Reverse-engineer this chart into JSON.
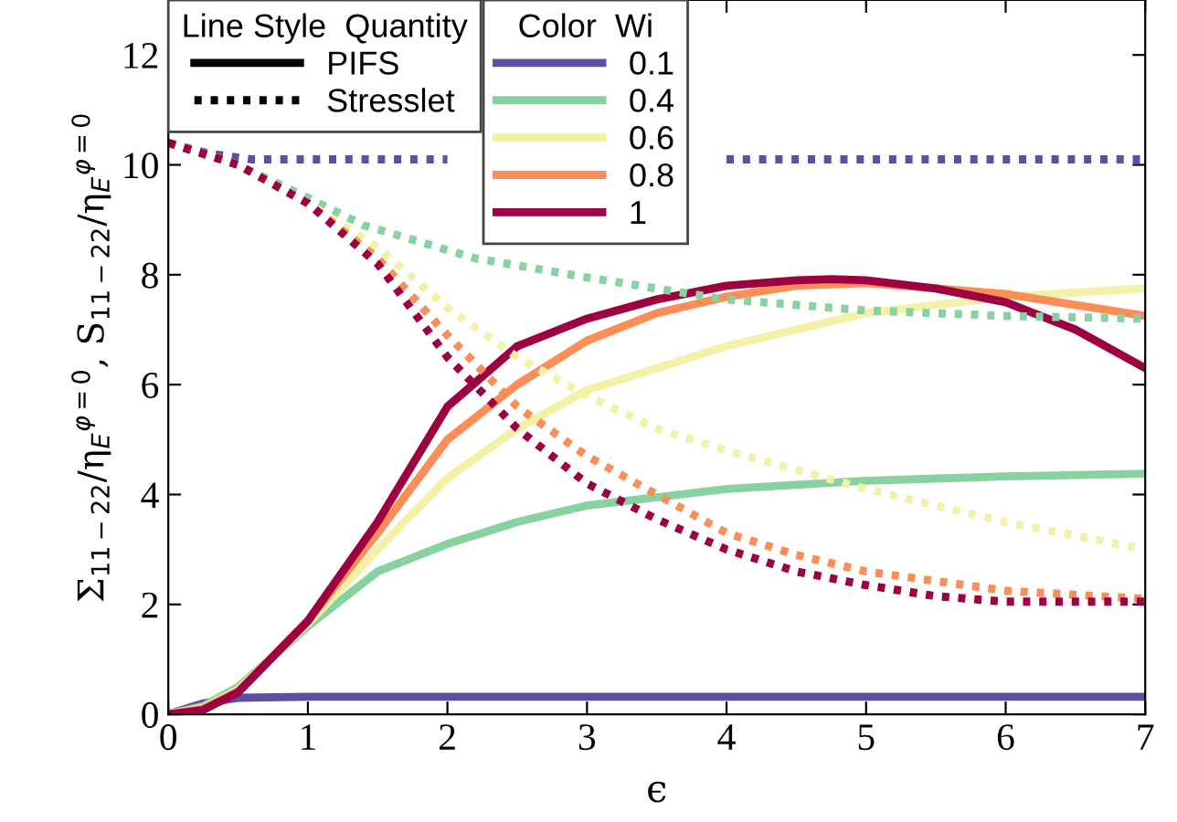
{
  "chart_data": {
    "type": "line",
    "xlabel": "ϵ",
    "ylabel": "Σ$_{11−22}$/η$_{E}$$^{φ=0}$, S$_{11−22}$/η$_{E}$$^{φ=0}$",
    "legend_title": [
      "Line Style  Quantity",
      "Color  Wi"
    ],
    "annotations": [
      "PIFS",
      "Stresslet"
    ],
    "legend": "top left",
    "grid": false,
    "xlim": [
      0,
      7
    ],
    "xticks": [
      0,
      1,
      2,
      3,
      4,
      5,
      6,
      7
    ],
    "ylim": [
      0,
      13
    ],
    "yticks": [
      0,
      2,
      4,
      6,
      8,
      10,
      12
    ],
    "series": [
      {
        "name": "0.1",
        "color": "#5e4fa2",
        "line_style": "solid",
        "x": [
          0,
          0.25,
          0.5,
          1,
          2,
          3,
          4,
          5,
          6,
          7
        ],
        "values": [
          0,
          0.2,
          0.3,
          0.32,
          0.32,
          0.32,
          0.32,
          0.32,
          0.32,
          0.32
        ]
      },
      {
        "name": "0.4",
        "color": "#88d1a0",
        "line_style": "solid",
        "x": [
          0,
          0.25,
          0.5,
          1,
          1.5,
          2,
          2.5,
          3,
          4,
          5,
          6,
          7
        ],
        "values": [
          0,
          0.15,
          0.5,
          1.6,
          2.6,
          3.1,
          3.5,
          3.8,
          4.1,
          4.25,
          4.33,
          4.38
        ]
      },
      {
        "name": "0.6",
        "color": "#f3f0a8",
        "line_style": "solid",
        "x": [
          0,
          0.25,
          0.5,
          1,
          1.5,
          2,
          2.5,
          3,
          4,
          5,
          6,
          7
        ],
        "values": [
          0,
          0.12,
          0.45,
          1.65,
          3.0,
          4.3,
          5.2,
          5.9,
          6.7,
          7.3,
          7.6,
          7.75
        ]
      },
      {
        "name": "0.8",
        "color": "#fb8d57",
        "line_style": "solid",
        "x": [
          0,
          0.25,
          0.5,
          1,
          1.5,
          2,
          2.5,
          3,
          3.5,
          4,
          4.5,
          5,
          6,
          7
        ],
        "values": [
          0,
          0.1,
          0.42,
          1.7,
          3.3,
          5.0,
          6.0,
          6.8,
          7.3,
          7.6,
          7.8,
          7.85,
          7.65,
          7.25
        ]
      },
      {
        "name": "1",
        "color": "#9e0142",
        "line_style": "solid",
        "x": [
          0,
          0.25,
          0.5,
          1,
          1.5,
          2,
          2.5,
          3,
          3.5,
          4,
          4.5,
          4.75,
          5,
          5.5,
          6,
          6.5,
          7
        ],
        "values": [
          0,
          0.08,
          0.4,
          1.7,
          3.5,
          5.6,
          6.7,
          7.2,
          7.55,
          7.8,
          7.9,
          7.92,
          7.9,
          7.75,
          7.5,
          7.0,
          6.3
        ]
      },
      {
        "color": "#5e4fa2",
        "line_style": "dotted",
        "x": [
          0,
          0.3,
          0.6,
          1,
          2,
          3,
          4,
          5,
          6,
          7
        ],
        "values": [
          10.4,
          10.2,
          10.1,
          10.1,
          10.1,
          null,
          10.1,
          10.1,
          10.1,
          10.1
        ]
      },
      {
        "color": "#88d1a0",
        "line_style": "dotted",
        "x": [
          0,
          0.5,
          1,
          1.4,
          2.2,
          3,
          4,
          5,
          6,
          7
        ],
        "values": [
          10.4,
          10.0,
          9.4,
          8.9,
          8.3,
          7.95,
          7.55,
          7.35,
          7.25,
          7.2
        ]
      },
      {
        "color": "#f3f0a8",
        "line_style": "dotted",
        "x": [
          0,
          0.5,
          1,
          1.5,
          2,
          2.5,
          3,
          3.5,
          4,
          4.5,
          5,
          6,
          7
        ],
        "values": [
          10.4,
          10.0,
          9.3,
          8.5,
          7.4,
          6.5,
          5.8,
          5.2,
          4.8,
          4.45,
          4.1,
          3.5,
          3.0
        ]
      },
      {
        "color": "#fb8d57",
        "line_style": "dotted",
        "x": [
          0,
          0.5,
          1,
          1.5,
          2,
          2.5,
          3,
          3.5,
          4,
          4.5,
          5,
          6,
          7
        ],
        "values": [
          10.4,
          10.0,
          9.3,
          8.3,
          6.9,
          5.6,
          4.7,
          4.0,
          3.3,
          2.9,
          2.6,
          2.25,
          2.1
        ]
      },
      {
        "color": "#9e0142",
        "line_style": "dotted",
        "x": [
          0,
          0.5,
          1,
          1.5,
          2,
          2.5,
          3,
          3.5,
          4,
          4.5,
          5,
          5.5,
          6,
          7
        ],
        "values": [
          10.4,
          10.0,
          9.3,
          8.2,
          6.5,
          5.2,
          4.2,
          3.55,
          3.0,
          2.6,
          2.35,
          2.15,
          2.05,
          2.05
        ]
      }
    ]
  }
}
